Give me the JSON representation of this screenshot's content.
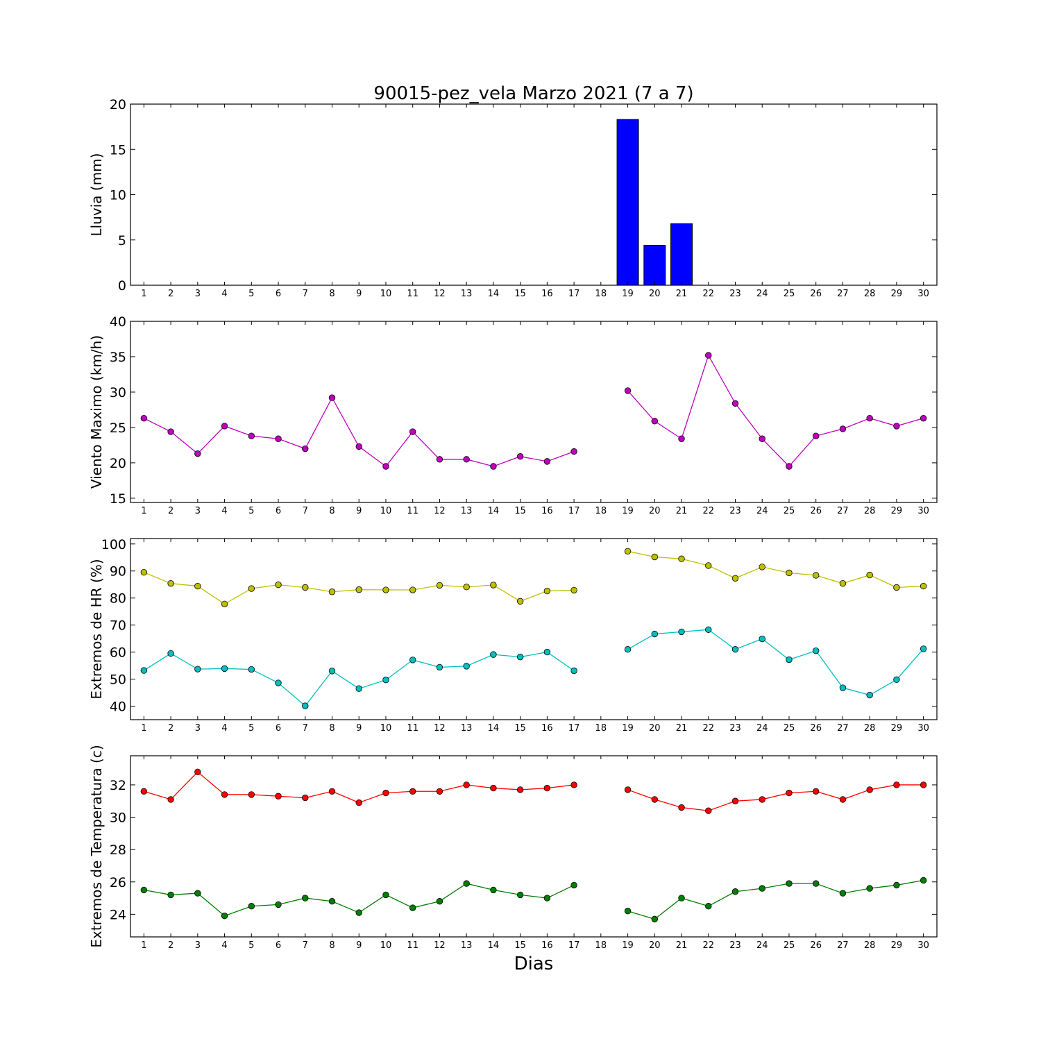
{
  "chart_data": {
    "title": "90015-pez_vela Marzo 2021  (7 a 7)",
    "xlabel": "Dias",
    "days": [
      1,
      2,
      3,
      4,
      5,
      6,
      7,
      8,
      9,
      10,
      11,
      12,
      13,
      14,
      15,
      16,
      17,
      18,
      19,
      20,
      21,
      22,
      23,
      24,
      25,
      26,
      27,
      28,
      29,
      30
    ],
    "panels": [
      {
        "type": "bar",
        "ylabel": "Lluvia (mm)",
        "ylim": [
          0,
          20
        ],
        "yticks": [
          0,
          5,
          10,
          15,
          20
        ],
        "series": [
          {
            "color": "#0000ff",
            "values": [
              0,
              0,
              0,
              0,
              0,
              0,
              0,
              0,
              0,
              0,
              0,
              0,
              0,
              0,
              0,
              0,
              0,
              null,
              18.3,
              4.4,
              6.8,
              0,
              0,
              0,
              0,
              0,
              0,
              0,
              0,
              0
            ]
          }
        ]
      },
      {
        "type": "line",
        "ylabel": "Viento Maximo (km/h)",
        "ylim": [
          14.4,
          40
        ],
        "yticks": [
          15,
          20,
          25,
          30,
          35,
          40
        ],
        "series": [
          {
            "color": "#bf00bf",
            "values": [
              26.3,
              24.4,
              21.3,
              25.2,
              23.8,
              23.4,
              22.0,
              29.2,
              22.3,
              19.5,
              24.4,
              20.5,
              20.5,
              19.5,
              20.9,
              20.2,
              21.6,
              null,
              30.2,
              25.9,
              23.4,
              35.2,
              28.4,
              23.4,
              19.5,
              23.8,
              24.8,
              26.3,
              25.2,
              26.3
            ]
          }
        ]
      },
      {
        "type": "line",
        "ylabel": "Extremos de HR (%)",
        "ylim": [
          35,
          102
        ],
        "yticks": [
          40,
          50,
          60,
          70,
          80,
          90,
          100
        ],
        "series": [
          {
            "color": "#bfbf00",
            "values": [
              89.5,
              85.4,
              84.4,
              77.8,
              83.5,
              84.9,
              83.9,
              82.3,
              83.1,
              83.0,
              83.0,
              84.7,
              84.1,
              84.8,
              78.8,
              82.6,
              82.9,
              null,
              97.3,
              95.2,
              94.5,
              92.0,
              87.3,
              91.5,
              89.3,
              88.4,
              85.4,
              88.5,
              83.9,
              84.4
            ]
          },
          {
            "color": "#00bfbf",
            "values": [
              53.2,
              59.5,
              53.7,
              53.9,
              53.6,
              48.6,
              40.1,
              53.0,
              46.5,
              49.7,
              57.1,
              54.4,
              54.8,
              59.1,
              58.2,
              60.0,
              53.1,
              null,
              61.0,
              66.7,
              67.5,
              68.3,
              61.0,
              64.9,
              57.2,
              60.5,
              46.8,
              44.1,
              49.8,
              61.2
            ]
          }
        ]
      },
      {
        "type": "line",
        "ylabel": "Extremos de Temperatura (c)",
        "ylim": [
          22.6,
          33.8
        ],
        "yticks": [
          24,
          26,
          28,
          30,
          32
        ],
        "series": [
          {
            "color": "#ff0000",
            "values": [
              31.6,
              31.1,
              32.8,
              31.4,
              31.4,
              31.3,
              31.2,
              31.6,
              30.9,
              31.5,
              31.6,
              31.6,
              32.0,
              31.8,
              31.7,
              31.8,
              32.0,
              null,
              31.7,
              31.1,
              30.6,
              30.4,
              31.0,
              31.1,
              31.5,
              31.6,
              31.1,
              31.7,
              32.0,
              32.0
            ]
          },
          {
            "color": "#007f00",
            "values": [
              25.5,
              25.2,
              25.3,
              23.9,
              24.5,
              24.6,
              25.0,
              24.8,
              24.1,
              25.2,
              24.4,
              24.8,
              25.9,
              25.5,
              25.2,
              25.0,
              25.8,
              null,
              24.2,
              23.7,
              25.0,
              24.5,
              25.4,
              25.6,
              25.9,
              25.9,
              25.3,
              25.6,
              25.8,
              26.1
            ]
          }
        ]
      }
    ]
  }
}
